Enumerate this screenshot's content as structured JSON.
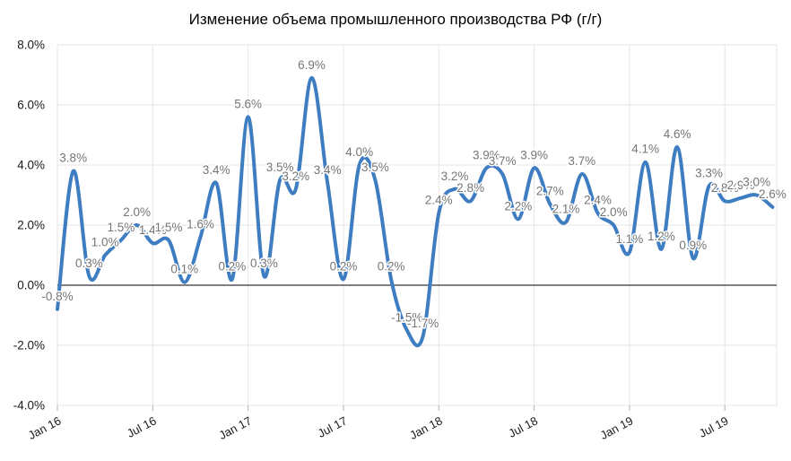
{
  "chart_data": {
    "type": "line",
    "smooth": true,
    "title": "Изменение объема промышленного производства РФ (г/г)",
    "xlabel": "",
    "ylabel": "",
    "ylim": [
      -4,
      8
    ],
    "grid": true,
    "legend": "none",
    "data_labels_visible": true,
    "categories": [
      "Jan 16",
      "Feb 16",
      "Mar 16",
      "Apr 16",
      "May 16",
      "Jun 16",
      "Jul 16",
      "Aug 16",
      "Sep 16",
      "Oct 16",
      "Nov 16",
      "Dec 16",
      "Jan 17",
      "Feb 17",
      "Mar 17",
      "Apr 17",
      "May 17",
      "Jun 17",
      "Jul 17",
      "Aug 17",
      "Sep 17",
      "Oct 17",
      "Nov 17",
      "Dec 17",
      "Jan 18",
      "Feb 18",
      "Mar 18",
      "Apr 18",
      "May 18",
      "Jun 18",
      "Jul 18",
      "Aug 18",
      "Sep 18",
      "Oct 18",
      "Nov 18",
      "Dec 18",
      "Jan 19",
      "Feb 19",
      "Mar 19",
      "Apr 19",
      "May 19",
      "Jun 19",
      "Jul 19",
      "Aug 19",
      "Sep 19",
      "Oct 19"
    ],
    "values": [
      -0.8,
      3.8,
      0.3,
      1.0,
      1.5,
      2.0,
      1.4,
      1.5,
      0.1,
      1.6,
      3.4,
      0.2,
      5.6,
      0.3,
      3.5,
      3.2,
      6.9,
      3.4,
      0.2,
      4.0,
      3.5,
      0.2,
      -1.5,
      -1.7,
      2.4,
      3.2,
      2.8,
      3.9,
      3.7,
      2.2,
      3.9,
      2.7,
      2.1,
      3.7,
      2.4,
      2.0,
      1.1,
      4.1,
      1.2,
      4.6,
      0.9,
      3.3,
      2.8,
      2.9,
      3.0,
      2.6
    ],
    "data_label_suffix": "%",
    "y_tick_values": [
      8,
      6,
      4,
      2,
      0,
      -2,
      -4
    ],
    "y_tick_labels": [
      "8.0%",
      "6.0%",
      "4.0%",
      "2.0%",
      "0.0%",
      "-2.0%",
      "-4.0%"
    ],
    "x_tick_labels": [
      "Jan 16",
      "Jul 16",
      "Jan 17",
      "Jul 17",
      "Jan 18",
      "Jul 18",
      "Jan 19",
      "Jul 19"
    ],
    "colors": {
      "line": "#3e7dc2",
      "data_label": "#757575",
      "axis_label": "#1a1a1a",
      "gridline": "#e6e6e6",
      "zero_line": "#000000",
      "tick": "#b0b0b0",
      "background": "#ffffff"
    }
  }
}
